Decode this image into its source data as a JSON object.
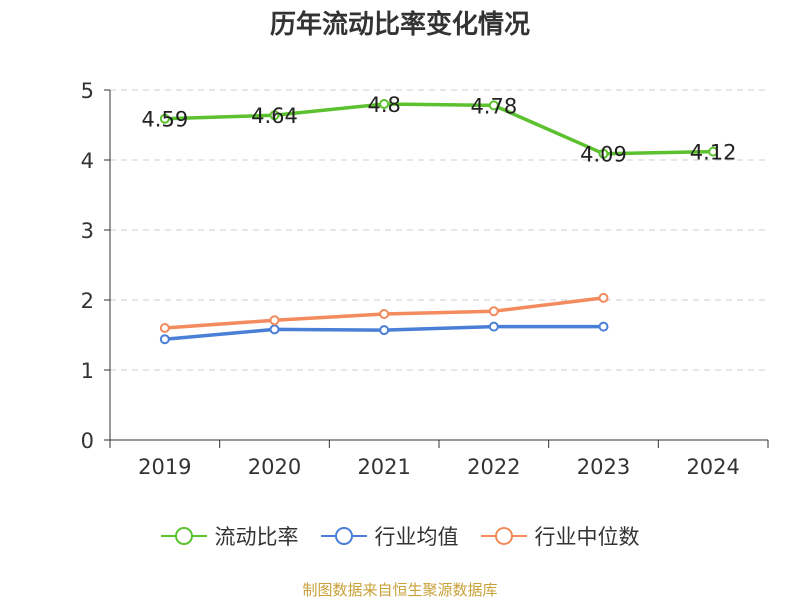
{
  "chart_data": {
    "type": "line",
    "title": "历年流动比率变化情况",
    "categories": [
      "2019",
      "2020",
      "2021",
      "2022",
      "2023",
      "2024"
    ],
    "ylim": [
      0,
      5
    ],
    "yticks": [
      0,
      1,
      2,
      3,
      4,
      5
    ],
    "grid": true,
    "legend_position": "bottom",
    "series": [
      {
        "name": "流动比率",
        "color": "#5cc12e",
        "values": [
          4.59,
          4.64,
          4.8,
          4.78,
          4.09,
          4.12
        ],
        "labels": [
          "4.59",
          "4.64",
          "4.8",
          "4.78",
          "4.09",
          "4.12"
        ]
      },
      {
        "name": "行业均值",
        "color": "#4a7fd8",
        "values": [
          1.44,
          1.58,
          1.57,
          1.62,
          1.62,
          null
        ]
      },
      {
        "name": "行业中位数",
        "color": "#f38b5e",
        "values": [
          1.6,
          1.71,
          1.8,
          1.84,
          2.03,
          null
        ]
      }
    ]
  },
  "footer": {
    "source": "制图数据来自恒生聚源数据库"
  }
}
